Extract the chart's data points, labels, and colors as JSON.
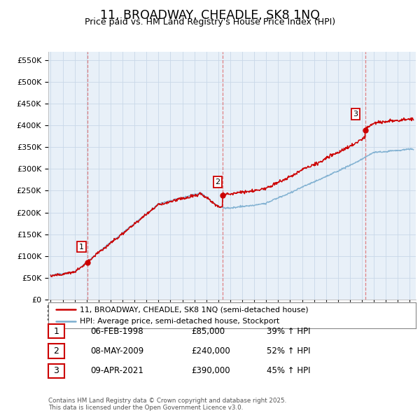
{
  "title": "11, BROADWAY, CHEADLE, SK8 1NQ",
  "subtitle": "Price paid vs. HM Land Registry's House Price Index (HPI)",
  "ytick_values": [
    0,
    50000,
    100000,
    150000,
    200000,
    250000,
    300000,
    350000,
    400000,
    450000,
    500000,
    550000
  ],
  "ylim": [
    0,
    570000
  ],
  "sale_dates": [
    1998.09,
    2009.35,
    2021.27
  ],
  "sale_prices": [
    85000,
    240000,
    390000
  ],
  "sale_labels": [
    "1",
    "2",
    "3"
  ],
  "legend_line1": "11, BROADWAY, CHEADLE, SK8 1NQ (semi-detached house)",
  "legend_line2": "HPI: Average price, semi-detached house, Stockport",
  "table_entries": [
    {
      "num": "1",
      "date": "06-FEB-1998",
      "price": "£85,000",
      "hpi": "39% ↑ HPI"
    },
    {
      "num": "2",
      "date": "08-MAY-2009",
      "price": "£240,000",
      "hpi": "52% ↑ HPI"
    },
    {
      "num": "3",
      "date": "09-APR-2021",
      "price": "£390,000",
      "hpi": "45% ↑ HPI"
    }
  ],
  "footer": "Contains HM Land Registry data © Crown copyright and database right 2025.\nThis data is licensed under the Open Government Licence v3.0.",
  "hpi_color": "#7aadcf",
  "price_color": "#cc0000",
  "background_color": "#ffffff",
  "grid_color": "#c8d8e8",
  "plot_bg_color": "#e8f0f8",
  "xlim_start": 1994.8,
  "xlim_end": 2025.5
}
